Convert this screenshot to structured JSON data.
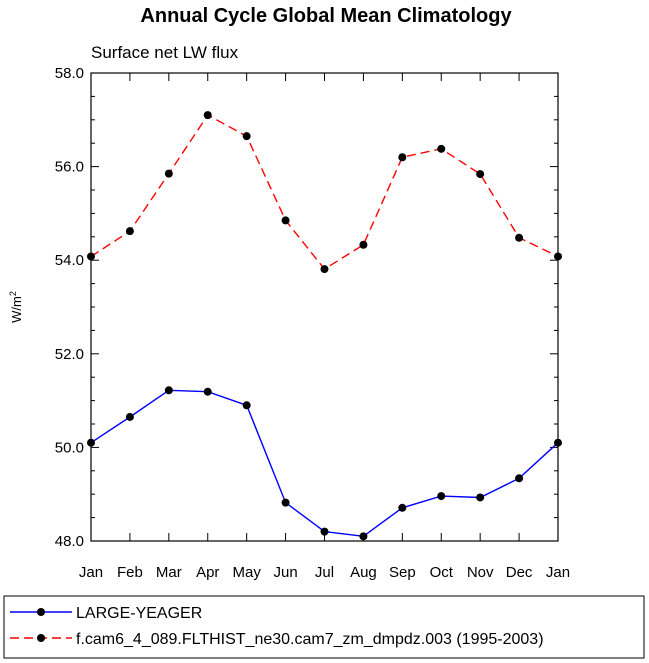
{
  "chart_data": {
    "type": "line",
    "title": "Annual Cycle Global Mean Climatology",
    "subtitle": "Surface net LW flux",
    "ylabel": "W/m",
    "ylabel_superscript": "2",
    "ylim": [
      48.0,
      58.0
    ],
    "yticks": [
      "48.0",
      "50.0",
      "52.0",
      "54.0",
      "56.0",
      "58.0"
    ],
    "categories": [
      "Jan",
      "Feb",
      "Mar",
      "Apr",
      "May",
      "Jun",
      "Jul",
      "Aug",
      "Sep",
      "Oct",
      "Nov",
      "Dec",
      "Jan"
    ],
    "series": [
      {
        "name": "LARGE-YEAGER",
        "color": "#0000ff",
        "dashed": false,
        "values": [
          50.1,
          50.65,
          51.22,
          51.19,
          50.9,
          48.82,
          48.2,
          48.1,
          48.71,
          48.96,
          48.93,
          49.34,
          50.1
        ]
      },
      {
        "name": "f.cam6_4_089.FLTHIST_ne30.cam7_zm_dmpdz.003 (1995-2003)",
        "color": "#ff0000",
        "dashed": true,
        "values": [
          54.08,
          54.62,
          55.85,
          57.1,
          56.65,
          54.85,
          53.81,
          54.33,
          56.2,
          56.38,
          55.84,
          54.48,
          54.08
        ]
      }
    ]
  }
}
